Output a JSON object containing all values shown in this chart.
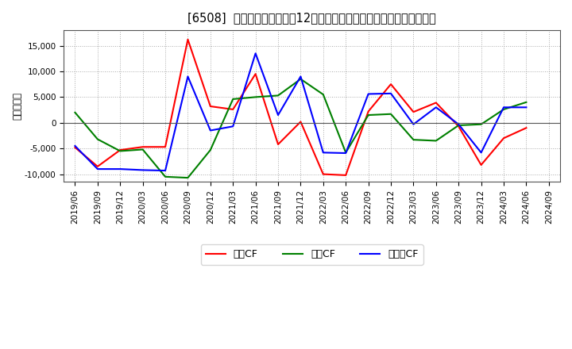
{
  "title": "[6508]  キャッシュフローの12か月移動合計の対前年同期増減額の推移",
  "ylabel": "（百万円）",
  "background_color": "#ffffff",
  "plot_background": "#ffffff",
  "grid_color": "#aaaaaa",
  "ylim": [
    -11500,
    18000
  ],
  "yticks": [
    -10000,
    -5000,
    0,
    5000,
    10000,
    15000
  ],
  "dates": [
    "2019/06",
    "2019/09",
    "2019/12",
    "2020/03",
    "2020/06",
    "2020/09",
    "2020/12",
    "2021/03",
    "2021/06",
    "2021/09",
    "2021/12",
    "2022/03",
    "2022/06",
    "2022/09",
    "2022/12",
    "2023/03",
    "2023/06",
    "2023/09",
    "2023/12",
    "2024/03",
    "2024/06",
    "2024/09"
  ],
  "operating_cf": [
    -4800,
    -8500,
    -5300,
    -4700,
    -4700,
    16200,
    3200,
    2600,
    9500,
    -4200,
    200,
    -10000,
    -10200,
    2200,
    7500,
    2100,
    3900,
    -700,
    -8200,
    -3000,
    -1000,
    null
  ],
  "investing_cf": [
    2000,
    -3200,
    -5500,
    -5200,
    -10500,
    -10700,
    -5300,
    4600,
    5000,
    5300,
    8500,
    5500,
    -5800,
    1500,
    1700,
    -3300,
    -3500,
    -500,
    -300,
    2600,
    4000,
    null
  ],
  "free_cf": [
    -4500,
    -9000,
    -9000,
    -9200,
    -9300,
    9000,
    -1500,
    -700,
    13500,
    1500,
    9000,
    -5800,
    -5900,
    5600,
    5700,
    -300,
    3000,
    -300,
    -5800,
    3000,
    3000,
    null
  ],
  "legend_labels": [
    "営業CF",
    "投資CF",
    "フリーCF"
  ],
  "line_colors": [
    "#ff0000",
    "#008000",
    "#0000ff"
  ],
  "line_width": 1.5,
  "title_fontsize": 10.5,
  "label_fontsize": 8.5,
  "tick_fontsize": 7.5,
  "legend_fontsize": 9
}
